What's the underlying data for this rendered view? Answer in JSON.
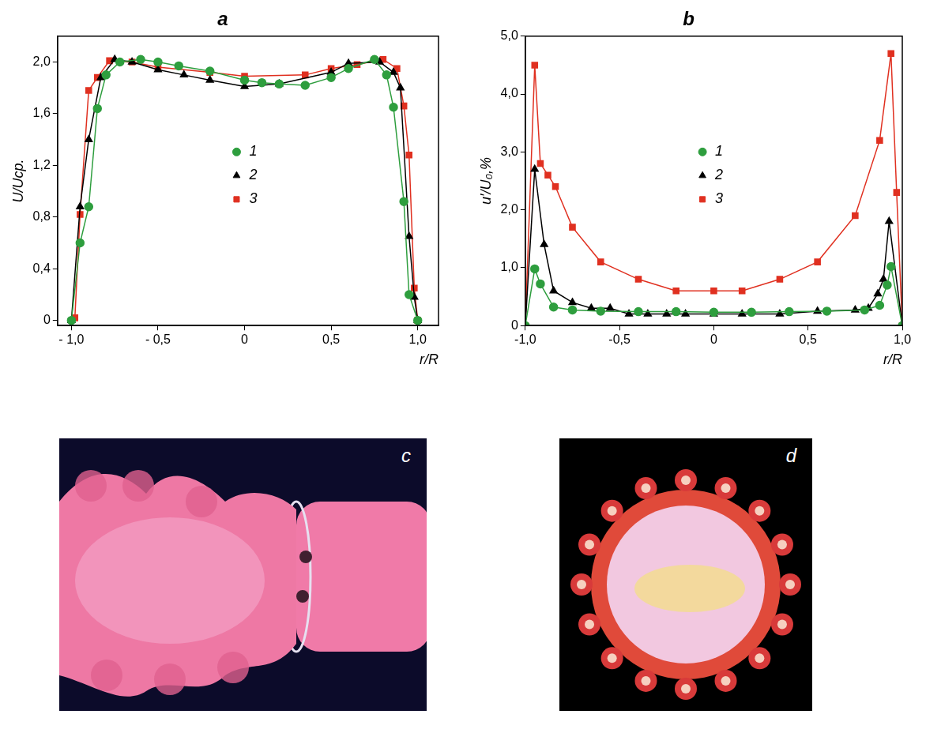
{
  "chart_data": [
    {
      "type": "line",
      "title": "a",
      "x_label": "r/R",
      "y_label": "U/Ucp.",
      "xlim": [
        -1.08,
        1.12
      ],
      "xticks": [
        {
          "value": -1,
          "label": "- 1,0"
        },
        {
          "value": -0.5,
          "label": "- 0,5"
        },
        0,
        {
          "value": 0.5,
          "label": "0,5"
        },
        {
          "value": 1,
          "label": "1,0"
        }
      ],
      "ylim": [
        -0.04,
        2.2
      ],
      "yticks": [
        0,
        {
          "value": 0.4,
          "label": "0,4"
        },
        {
          "value": 0.8,
          "label": "0,8"
        },
        {
          "value": 1.2,
          "label": "1,2"
        },
        {
          "value": 1.6,
          "label": "1,6"
        },
        {
          "value": 2,
          "label": "2,0"
        }
      ],
      "grid": false,
      "legend": "center",
      "series": [
        {
          "name": "1",
          "color": "#2e9e3e",
          "marker": "circle",
          "x": [
            -1,
            -0.95,
            -0.9,
            -0.85,
            -0.8,
            -0.72,
            -0.6,
            -0.5,
            -0.38,
            -0.2,
            0,
            0.1,
            0.2,
            0.35,
            0.5,
            0.6,
            0.75,
            0.82,
            0.86,
            0.92,
            0.95,
            1.0
          ],
          "values": [
            0,
            0.6,
            0.88,
            1.64,
            1.9,
            2.0,
            2.02,
            2.0,
            1.97,
            1.93,
            1.86,
            1.84,
            1.83,
            1.82,
            1.88,
            1.95,
            2.02,
            1.9,
            1.65,
            0.92,
            0.2,
            0
          ]
        },
        {
          "name": "2",
          "color": "#000000",
          "marker": "triangle",
          "x": [
            -1,
            -0.95,
            -0.9,
            -0.83,
            -0.75,
            -0.65,
            -0.5,
            -0.35,
            -0.2,
            0,
            0.2,
            0.5,
            0.6,
            0.78,
            0.86,
            0.9,
            0.95,
            0.98,
            1.0
          ],
          "values": [
            0,
            0.88,
            1.4,
            1.88,
            2.02,
            2.0,
            1.94,
            1.9,
            1.86,
            1.81,
            1.83,
            1.92,
            1.99,
            2.0,
            1.92,
            1.8,
            0.65,
            0.18,
            0
          ]
        },
        {
          "name": "3",
          "color": "#e03020",
          "marker": "square",
          "x": [
            -0.98,
            -0.95,
            -0.9,
            -0.85,
            -0.78,
            -0.65,
            -0.5,
            -0.2,
            0,
            0.35,
            0.5,
            0.65,
            0.8,
            0.88,
            0.92,
            0.95,
            0.98,
            1.0
          ],
          "values": [
            0.02,
            0.82,
            1.78,
            1.88,
            2.01,
            2.0,
            1.96,
            1.92,
            1.89,
            1.9,
            1.95,
            1.98,
            2.02,
            1.95,
            1.66,
            1.28,
            0.25,
            0
          ]
        }
      ]
    },
    {
      "type": "line",
      "title": "b",
      "x_label": "r/R",
      "y_label": "u′/U₀,%",
      "xlim": [
        -1,
        1
      ],
      "xticks": [
        {
          "value": -1,
          "label": "-1,0"
        },
        {
          "value": -0.5,
          "label": "-0,5"
        },
        0,
        {
          "value": 0.5,
          "label": "0,5"
        },
        {
          "value": 1,
          "label": "1,0"
        }
      ],
      "ylim": [
        0,
        5
      ],
      "yticks": [
        0,
        {
          "value": 1,
          "label": "1,0"
        },
        {
          "value": 2,
          "label": "2,0"
        },
        {
          "value": 3,
          "label": "3,0"
        },
        {
          "value": 4,
          "label": "4,0"
        },
        {
          "value": 5,
          "label": "5,0"
        }
      ],
      "grid": false,
      "legend": "center",
      "series": [
        {
          "name": "1",
          "color": "#2e9e3e",
          "marker": "circle",
          "x": [
            -1,
            -0.95,
            -0.92,
            -0.85,
            -0.75,
            -0.6,
            -0.4,
            -0.2,
            0,
            0.2,
            0.4,
            0.6,
            0.8,
            0.88,
            0.92,
            0.94,
            1.0
          ],
          "values": [
            0,
            0.98,
            0.72,
            0.32,
            0.27,
            0.25,
            0.24,
            0.24,
            0.23,
            0.23,
            0.24,
            0.25,
            0.27,
            0.35,
            0.7,
            1.02,
            0
          ]
        },
        {
          "name": "2",
          "color": "#000000",
          "marker": "triangle",
          "x": [
            -1,
            -0.95,
            -0.9,
            -0.85,
            -0.75,
            -0.65,
            -0.55,
            -0.45,
            -0.35,
            -0.25,
            -0.15,
            0,
            0.15,
            0.35,
            0.55,
            0.75,
            0.82,
            0.87,
            0.9,
            0.93,
            1.0
          ],
          "values": [
            0,
            2.7,
            1.4,
            0.6,
            0.4,
            0.3,
            0.3,
            0.2,
            0.2,
            0.2,
            0.2,
            0.2,
            0.2,
            0.2,
            0.25,
            0.27,
            0.3,
            0.55,
            0.8,
            1.8,
            0
          ]
        },
        {
          "name": "3",
          "color": "#e03020",
          "marker": "square",
          "x": [
            -1,
            -0.95,
            -0.92,
            -0.88,
            -0.84,
            -0.75,
            -0.6,
            -0.4,
            -0.2,
            0,
            0.15,
            0.35,
            0.55,
            0.75,
            0.88,
            0.94,
            0.97,
            1.0
          ],
          "values": [
            0,
            4.5,
            2.8,
            2.6,
            2.4,
            1.7,
            1.1,
            0.8,
            0.6,
            0.6,
            0.6,
            0.8,
            1.1,
            1.9,
            3.2,
            4.7,
            2.3,
            0
          ]
        }
      ]
    }
  ],
  "images": [
    {
      "title": "c"
    },
    {
      "title": "d"
    }
  ]
}
